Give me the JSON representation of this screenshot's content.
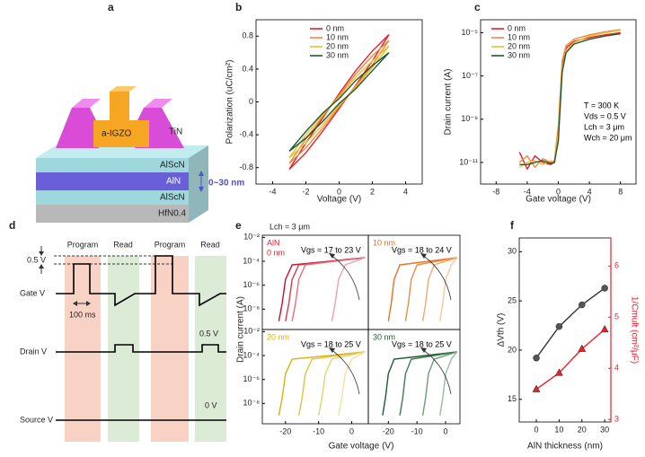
{
  "panel_labels": [
    "a",
    "b",
    "c",
    "d",
    "e",
    "f"
  ],
  "device": {
    "layers": [
      "TiN",
      "a-IGZO",
      "AlScN",
      "AlN",
      "AlScN",
      "HfN0.4"
    ],
    "thickness_label": "0~30 nm"
  },
  "timing": {
    "phases": [
      "Program",
      "Read",
      "Program",
      "Read"
    ],
    "gate_label": "Gate V",
    "gate_step": "0.5 V",
    "pulse_width": "100 ms",
    "drain_label": "Drain V",
    "drain_level": "0.5 V",
    "source_label": "Source V",
    "source_level": "0 V"
  },
  "panel_e": {
    "annotation": "Lch = 3 μm",
    "y_label": "Drain current (A)",
    "x_label": "Gate voltage (V)"
  },
  "chart_data": [
    {
      "type": "line",
      "x_label": "Voltage (V)",
      "y_label": "Polarization (uC/cm²)",
      "xlim": [
        -5,
        5
      ],
      "xticks": [
        -4,
        -2,
        0,
        2,
        4
      ],
      "ylim": [
        -1,
        1
      ],
      "yticks": [
        -0.8,
        -0.4,
        0,
        0.4,
        0.8
      ],
      "legend": "upper left",
      "x": [
        -3,
        -2,
        -1,
        0,
        1,
        2,
        3,
        2,
        1,
        0,
        -1,
        -2,
        -3
      ],
      "series": [
        {
          "name": "0 nm",
          "color": "#e8202a",
          "values": [
            -0.82,
            -0.62,
            -0.36,
            -0.08,
            0.2,
            0.5,
            0.82,
            0.62,
            0.38,
            0.1,
            -0.2,
            -0.5,
            -0.82
          ]
        },
        {
          "name": "10 nm",
          "color": "#f0883a",
          "values": [
            -0.75,
            -0.56,
            -0.32,
            -0.06,
            0.19,
            0.45,
            0.75,
            0.56,
            0.34,
            0.08,
            -0.18,
            -0.45,
            -0.75
          ]
        },
        {
          "name": "20 nm",
          "color": "#e8c030",
          "values": [
            -0.68,
            -0.5,
            -0.28,
            -0.04,
            0.18,
            0.42,
            0.68,
            0.5,
            0.3,
            0.06,
            -0.16,
            -0.4,
            -0.68
          ]
        },
        {
          "name": "30 nm",
          "color": "#1e5a2e",
          "values": [
            -0.6,
            -0.44,
            -0.24,
            -0.02,
            0.16,
            0.38,
            0.6,
            0.44,
            0.26,
            0.04,
            -0.14,
            -0.36,
            -0.6
          ]
        }
      ]
    },
    {
      "type": "line",
      "x_label": "Gate voltage (V)",
      "y_label": "Drain current (A)",
      "log_y": true,
      "xlim": [
        -10,
        10
      ],
      "xticks": [
        -8,
        -4,
        0,
        4,
        8
      ],
      "ylim": [
        1e-12,
        4e-05
      ],
      "yticks": [
        {
          "value": 1e-11,
          "label": "10⁻¹¹"
        },
        {
          "value": 1e-09,
          "label": "10⁻⁹"
        },
        {
          "value": 1e-07,
          "label": "10⁻⁷"
        },
        {
          "value": 1e-05,
          "label": "10⁻⁵"
        }
      ],
      "legend": "upper left",
      "annotations": [
        {
          "text": "T = 300 K",
          "color": "#000"
        },
        {
          "text": "Vds = 0.5 V",
          "color": "#000"
        },
        {
          "text": "Lch = 3 μm",
          "color": "#000"
        },
        {
          "text": "Wch = 20 μm",
          "color": "#000"
        }
      ],
      "x": [
        -5,
        -4,
        -3,
        -2,
        -1,
        -0.5,
        0,
        0.5,
        1,
        2,
        4,
        6,
        8
      ],
      "series": [
        {
          "name": "0 nm",
          "color": "#e8202a",
          "values": [
            3e-11,
            5e-12,
            2e-11,
            1e-11,
            8e-12,
            1e-11,
            3e-10,
            3e-07,
            2e-06,
            4e-06,
            6e-06,
            8e-06,
            1e-05
          ]
        },
        {
          "name": "10 nm",
          "color": "#f0883a",
          "values": [
            1e-11,
            2e-11,
            6e-12,
            1.5e-11,
            1e-11,
            1.2e-11,
            5e-10,
            5e-07,
            2.5e-06,
            5e-06,
            8e-06,
            1.1e-05,
            1.4e-05
          ]
        },
        {
          "name": "20 nm",
          "color": "#e8c030",
          "values": [
            6e-12,
            1e-11,
            1.2e-11,
            8e-12,
            1.2e-11,
            1e-11,
            2e-10,
            2e-07,
            1.5e-06,
            3.5e-06,
            7e-06,
            1e-05,
            1.3e-05
          ]
        },
        {
          "name": "30 nm",
          "color": "#1e5a2e",
          "values": [
            8e-12,
            8e-12,
            1e-11,
            1.2e-11,
            9e-12,
            1e-11,
            1e-10,
            1.5e-07,
            1.2e-06,
            3e-06,
            5e-06,
            7e-06,
            9e-06
          ]
        }
      ]
    },
    {
      "type": "line",
      "log_y": true,
      "xlim": [
        -27,
        5
      ],
      "ylim": [
        2e-10,
        0.015
      ],
      "yticks": [
        {
          "value": 1e-08,
          "label": "10⁻⁸"
        },
        {
          "value": 1e-06,
          "label": "10⁻⁶"
        },
        {
          "value": 0.0001,
          "label": "10⁻⁴"
        },
        {
          "value": 0.01,
          "label": "10⁻²"
        }
      ],
      "annotations": [
        {
          "text": "AlN",
          "color": "#e8202a"
        },
        {
          "text": "0 nm",
          "color": "#e8202a"
        },
        {
          "text": "Vgs = 17 to 23 V",
          "color": "#000"
        }
      ],
      "series": [
        {
          "color": "#c8102e",
          "x": [
            -22,
            -21,
            -20,
            -18,
            4
          ],
          "values": [
            1e-09,
            3e-08,
            3e-06,
            5e-05,
            0.0002
          ]
        },
        {
          "color": "#d63a4c",
          "x": [
            -20,
            -19,
            -18,
            -16,
            4
          ],
          "values": [
            1e-09,
            3e-08,
            3e-06,
            5e-05,
            0.0002
          ]
        },
        {
          "color": "#e0707c",
          "x": [
            -18,
            -17,
            -16,
            -14,
            4
          ],
          "values": [
            1e-09,
            3e-08,
            3e-06,
            5e-05,
            0.0002
          ]
        },
        {
          "color": "#eca0a8",
          "x": [
            -6,
            -5,
            -4,
            -2,
            4
          ],
          "values": [
            1e-09,
            3e-08,
            3e-06,
            5e-05,
            0.0002
          ]
        }
      ]
    },
    {
      "type": "line",
      "log_y": true,
      "xlim": [
        -27,
        5
      ],
      "ylim": [
        2e-10,
        0.015
      ],
      "annotations": [
        {
          "text": "10 nm",
          "color": "#e8701e"
        },
        {
          "text": "Vgs = 18 to 24 V",
          "color": "#000"
        }
      ],
      "series": [
        {
          "color": "#e8701e",
          "x": [
            -20,
            -19,
            -18,
            -16,
            4
          ],
          "values": [
            1e-09,
            3e-08,
            3e-06,
            5e-05,
            0.0002
          ]
        },
        {
          "color": "#f08a40",
          "x": [
            -14,
            -13,
            -12,
            -10,
            4
          ],
          "values": [
            1e-09,
            3e-08,
            3e-06,
            5e-05,
            0.0002
          ]
        },
        {
          "color": "#f4a868",
          "x": [
            -8,
            -7,
            -6,
            -4,
            4
          ],
          "values": [
            1e-09,
            3e-08,
            3e-06,
            5e-05,
            0.0002
          ]
        },
        {
          "color": "#f8c69a",
          "x": [
            -2,
            -1,
            0,
            2,
            4
          ],
          "values": [
            1e-09,
            3e-08,
            3e-06,
            5e-05,
            0.0002
          ]
        }
      ]
    },
    {
      "type": "line",
      "log_y": true,
      "xlim": [
        -27,
        5
      ],
      "xticks": [
        -20,
        -10,
        0
      ],
      "ylim": [
        2e-10,
        0.015
      ],
      "yticks": [
        {
          "value": 1e-08,
          "label": "10⁻⁸"
        },
        {
          "value": 1e-06,
          "label": "10⁻⁶"
        },
        {
          "value": 0.0001,
          "label": "10⁻⁴"
        },
        {
          "value": 0.01,
          "label": "10⁻²"
        }
      ],
      "annotations": [
        {
          "text": "20 nm",
          "color": "#d8b010"
        },
        {
          "text": "Vgs = 18 to 25 V",
          "color": "#000"
        }
      ],
      "series": [
        {
          "color": "#d8b010",
          "x": [
            -22,
            -21,
            -20,
            -18,
            4
          ],
          "values": [
            1e-09,
            3e-08,
            3e-06,
            5e-05,
            0.0002
          ]
        },
        {
          "color": "#e2c040",
          "x": [
            -16,
            -15,
            -14,
            -12,
            4
          ],
          "values": [
            1e-09,
            3e-08,
            3e-06,
            5e-05,
            0.0002
          ]
        },
        {
          "color": "#ead070",
          "x": [
            -10,
            -9,
            -8,
            -6,
            4
          ],
          "values": [
            1e-09,
            3e-08,
            3e-06,
            5e-05,
            0.0002
          ]
        },
        {
          "color": "#f2e0a0",
          "x": [
            -4,
            -3,
            -2,
            0,
            4
          ],
          "values": [
            1e-09,
            3e-08,
            3e-06,
            5e-05,
            0.0002
          ]
        }
      ]
    },
    {
      "type": "line",
      "log_y": true,
      "xlim": [
        -27,
        5
      ],
      "xticks": [
        -20,
        -10,
        0
      ],
      "ylim": [
        2e-10,
        0.015
      ],
      "annotations": [
        {
          "text": "30 nm",
          "color": "#1e5a2e"
        },
        {
          "text": "Vgs = 18 to 25 V",
          "color": "#000"
        }
      ],
      "series": [
        {
          "color": "#1e5a2e",
          "x": [
            -22,
            -21,
            -20,
            -18,
            4
          ],
          "values": [
            1e-09,
            3e-08,
            3e-06,
            5e-05,
            0.0002
          ]
        },
        {
          "color": "#3e7a4e",
          "x": [
            -16,
            -15,
            -14,
            -12,
            4
          ],
          "values": [
            1e-09,
            3e-08,
            3e-06,
            5e-05,
            0.0002
          ]
        },
        {
          "color": "#6e9a7a",
          "x": [
            -8,
            -7,
            -6,
            -4,
            4
          ],
          "values": [
            1e-09,
            3e-08,
            3e-06,
            5e-05,
            0.0002
          ]
        },
        {
          "color": "#9abaa4",
          "x": [
            -2,
            -1,
            0,
            2,
            4
          ],
          "values": [
            1e-09,
            3e-08,
            3e-06,
            5e-05,
            0.0002
          ]
        }
      ]
    },
    {
      "type": "line",
      "x_label": "AlN thickness (nm)",
      "y_label": "ΔVth (V)",
      "y2_label": "1/Cmult (cm²/μF)",
      "y2_color": "#e8202a",
      "xlim": [
        -7.5,
        32.7
      ],
      "xticks": [
        0,
        10,
        20,
        30
      ],
      "ylim": [
        12.7,
        31.4
      ],
      "yticks": [
        15,
        20,
        25,
        30
      ],
      "y2lim": [
        2.95,
        6.55
      ],
      "y2ticks": [
        3,
        4,
        5,
        6
      ],
      "x": [
        0,
        10,
        20,
        30
      ],
      "series": [
        {
          "color": "#555555",
          "line_color": "#333333",
          "marker": "circle",
          "values": [
            19.2,
            22.4,
            24.6,
            26.3
          ]
        },
        {
          "color": "#e8202a",
          "line_color": "#e8202a",
          "marker": "triangle",
          "axis": "y2",
          "values": [
            3.59,
            3.91,
            4.38,
            4.76
          ]
        }
      ]
    }
  ]
}
